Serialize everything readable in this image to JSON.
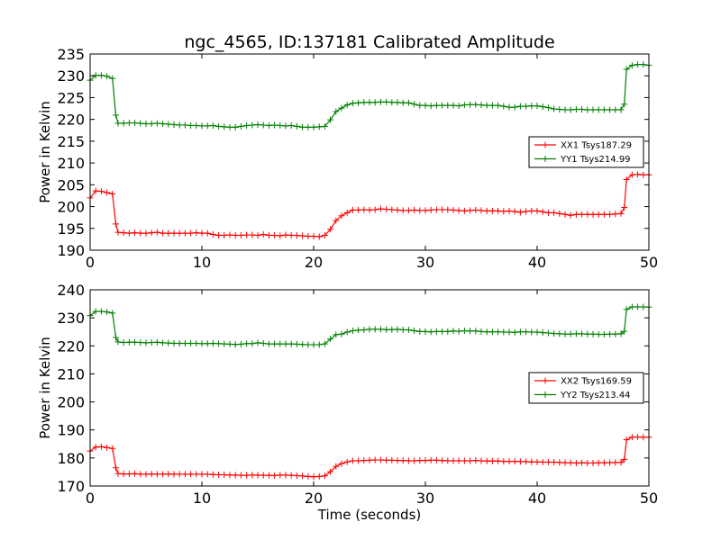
{
  "figure": {
    "title": "ngc_4565, ID:137181 Calibrated Amplitude"
  },
  "chart_data": [
    {
      "type": "line",
      "title": "ngc_4565, ID:137181 Calibrated Amplitude",
      "xlabel": "",
      "ylabel": "Power in Kelvin",
      "xlim": [
        0,
        50
      ],
      "ylim": [
        190,
        235
      ],
      "xticks": [
        "0",
        "10",
        "20",
        "30",
        "40",
        "50"
      ],
      "yticks": [
        "190",
        "195",
        "200",
        "205",
        "210",
        "215",
        "220",
        "225",
        "230",
        "235"
      ],
      "grid": false,
      "legend": "center-right",
      "x": [
        0.0,
        0.5,
        1.0,
        1.5,
        2.0,
        2.3,
        2.5,
        3.0,
        3.5,
        4.0,
        4.5,
        5.0,
        5.5,
        6.0,
        6.5,
        7.0,
        7.5,
        8.0,
        8.5,
        9.0,
        9.5,
        10.0,
        10.5,
        11.0,
        11.5,
        12.0,
        12.5,
        13.0,
        13.5,
        14.0,
        14.5,
        15.0,
        15.5,
        16.0,
        16.5,
        17.0,
        17.5,
        18.0,
        18.5,
        19.0,
        19.5,
        20.0,
        20.5,
        21.0,
        21.5,
        22.0,
        22.5,
        23.0,
        23.5,
        24.0,
        24.5,
        25.0,
        25.5,
        26.0,
        26.5,
        27.0,
        27.5,
        28.0,
        28.5,
        29.0,
        29.5,
        30.0,
        30.5,
        31.0,
        31.5,
        32.0,
        32.5,
        33.0,
        33.5,
        34.0,
        34.5,
        35.0,
        35.5,
        36.0,
        36.5,
        37.0,
        37.5,
        38.0,
        38.5,
        39.0,
        39.5,
        40.0,
        40.5,
        41.0,
        41.5,
        42.0,
        42.5,
        43.0,
        43.5,
        44.0,
        44.5,
        45.0,
        45.5,
        46.0,
        46.5,
        47.0,
        47.5,
        47.8,
        48.0,
        48.5,
        49.0,
        49.5,
        50.0
      ],
      "series": [
        {
          "name": "XX1 Tsys187.29",
          "color": "#ff0000",
          "values": [
            202.0,
            203.6,
            203.5,
            203.2,
            202.9,
            196.0,
            194.1,
            194.0,
            193.9,
            194.0,
            193.9,
            193.9,
            194.0,
            194.1,
            193.9,
            193.9,
            193.9,
            193.9,
            193.9,
            193.9,
            194.0,
            193.9,
            193.9,
            193.6,
            193.4,
            193.4,
            193.5,
            193.4,
            193.4,
            193.5,
            193.5,
            193.4,
            193.6,
            193.4,
            193.4,
            193.3,
            193.5,
            193.4,
            193.4,
            193.3,
            193.2,
            193.2,
            193.1,
            193.4,
            194.8,
            196.8,
            197.9,
            198.6,
            199.2,
            199.2,
            199.3,
            199.2,
            199.3,
            199.5,
            199.4,
            199.3,
            199.2,
            199.1,
            199.1,
            199.2,
            199.1,
            199.1,
            199.2,
            199.3,
            199.3,
            199.3,
            199.2,
            199.1,
            199.0,
            199.1,
            199.2,
            199.1,
            199.0,
            199.0,
            199.0,
            198.9,
            199.0,
            198.9,
            198.7,
            198.9,
            199.0,
            199.0,
            198.8,
            198.6,
            198.6,
            198.4,
            198.2,
            198.0,
            198.2,
            198.2,
            198.2,
            198.2,
            198.2,
            198.2,
            198.2,
            198.3,
            198.4,
            199.8,
            206.2,
            207.3,
            207.4,
            207.3,
            207.3
          ]
        },
        {
          "name": "YY1 Tsys214.99",
          "color": "#008000",
          "values": [
            229.0,
            230.1,
            230.1,
            229.9,
            229.4,
            221.0,
            219.1,
            219.1,
            219.2,
            219.2,
            219.1,
            219.0,
            219.0,
            219.1,
            219.0,
            218.9,
            218.8,
            218.7,
            218.7,
            218.6,
            218.6,
            218.5,
            218.5,
            218.6,
            218.4,
            218.3,
            218.2,
            218.2,
            218.4,
            218.6,
            218.7,
            218.8,
            218.7,
            218.6,
            218.7,
            218.6,
            218.5,
            218.6,
            218.4,
            218.2,
            218.2,
            218.2,
            218.3,
            218.4,
            219.9,
            221.8,
            222.6,
            223.3,
            223.7,
            223.8,
            223.9,
            223.9,
            223.9,
            224.0,
            224.0,
            223.9,
            223.9,
            223.8,
            223.8,
            223.5,
            223.2,
            223.2,
            223.1,
            223.2,
            223.2,
            223.2,
            223.2,
            223.1,
            223.3,
            223.4,
            223.4,
            223.3,
            223.2,
            223.2,
            223.2,
            223.0,
            222.8,
            222.8,
            223.0,
            223.0,
            223.1,
            223.1,
            222.9,
            222.7,
            222.4,
            222.3,
            222.2,
            222.2,
            222.3,
            222.3,
            222.2,
            222.2,
            222.2,
            222.2,
            222.2,
            222.2,
            222.2,
            223.5,
            231.5,
            232.4,
            232.6,
            232.6,
            232.4
          ]
        }
      ]
    },
    {
      "type": "line",
      "title": "",
      "xlabel": "Time (seconds)",
      "ylabel": "Power in Kelvin",
      "xlim": [
        0,
        50
      ],
      "ylim": [
        170,
        240
      ],
      "xticks": [
        "0",
        "10",
        "20",
        "30",
        "40",
        "50"
      ],
      "yticks": [
        "170",
        "180",
        "190",
        "200",
        "210",
        "220",
        "230",
        "240"
      ],
      "grid": false,
      "legend": "center-right",
      "x": [
        0.0,
        0.5,
        1.0,
        1.5,
        2.0,
        2.3,
        2.5,
        3.0,
        3.5,
        4.0,
        4.5,
        5.0,
        5.5,
        6.0,
        6.5,
        7.0,
        7.5,
        8.0,
        8.5,
        9.0,
        9.5,
        10.0,
        10.5,
        11.0,
        11.5,
        12.0,
        12.5,
        13.0,
        13.5,
        14.0,
        14.5,
        15.0,
        15.5,
        16.0,
        16.5,
        17.0,
        17.5,
        18.0,
        18.5,
        19.0,
        19.5,
        20.0,
        20.5,
        21.0,
        21.5,
        22.0,
        22.5,
        23.0,
        23.5,
        24.0,
        24.5,
        25.0,
        25.5,
        26.0,
        26.5,
        27.0,
        27.5,
        28.0,
        28.5,
        29.0,
        29.5,
        30.0,
        30.5,
        31.0,
        31.5,
        32.0,
        32.5,
        33.0,
        33.5,
        34.0,
        34.5,
        35.0,
        35.5,
        36.0,
        36.5,
        37.0,
        37.5,
        38.0,
        38.5,
        39.0,
        39.5,
        40.0,
        40.5,
        41.0,
        41.5,
        42.0,
        42.5,
        43.0,
        43.5,
        44.0,
        44.5,
        45.0,
        45.5,
        46.0,
        46.5,
        47.0,
        47.5,
        47.8,
        48.0,
        48.5,
        49.0,
        49.5,
        50.0
      ],
      "series": [
        {
          "name": "XX2 Tsys169.59",
          "color": "#ff0000",
          "values": [
            182.5,
            183.9,
            184.0,
            183.7,
            183.4,
            176.5,
            174.4,
            174.3,
            174.3,
            174.4,
            174.2,
            174.2,
            174.3,
            174.2,
            174.2,
            174.3,
            174.2,
            174.2,
            174.2,
            174.2,
            174.2,
            174.2,
            174.2,
            174.1,
            174.0,
            174.0,
            173.9,
            173.9,
            173.8,
            173.8,
            173.9,
            173.9,
            173.8,
            173.8,
            173.7,
            173.9,
            173.9,
            173.8,
            173.7,
            173.6,
            173.4,
            173.3,
            173.4,
            173.6,
            175.1,
            177.0,
            178.0,
            178.6,
            179.0,
            179.0,
            179.1,
            179.2,
            179.3,
            179.3,
            179.2,
            179.2,
            179.1,
            179.1,
            179.0,
            179.0,
            179.1,
            179.1,
            179.2,
            179.2,
            179.1,
            179.0,
            179.0,
            179.0,
            179.0,
            179.0,
            179.1,
            179.0,
            178.9,
            178.9,
            178.9,
            178.8,
            178.8,
            178.8,
            178.7,
            178.7,
            178.6,
            178.6,
            178.5,
            178.5,
            178.5,
            178.4,
            178.3,
            178.3,
            178.2,
            178.3,
            178.2,
            178.2,
            178.3,
            178.3,
            178.3,
            178.4,
            178.4,
            179.5,
            186.5,
            187.4,
            187.5,
            187.4,
            187.4
          ]
        },
        {
          "name": "YY2 Tsys213.44",
          "color": "#008000",
          "values": [
            230.8,
            232.3,
            232.3,
            232.1,
            231.7,
            223.0,
            221.4,
            221.2,
            221.3,
            221.3,
            221.2,
            221.1,
            221.2,
            221.3,
            221.1,
            221.0,
            220.9,
            220.9,
            220.9,
            220.9,
            220.9,
            220.8,
            220.8,
            220.9,
            220.8,
            220.7,
            220.6,
            220.5,
            220.6,
            220.8,
            220.8,
            221.1,
            220.9,
            220.7,
            220.7,
            220.7,
            220.7,
            220.7,
            220.6,
            220.5,
            220.4,
            220.4,
            220.4,
            220.7,
            222.4,
            224.0,
            224.2,
            224.9,
            225.4,
            225.6,
            225.7,
            225.9,
            225.9,
            225.9,
            225.8,
            225.8,
            225.9,
            225.7,
            225.7,
            225.4,
            225.1,
            225.1,
            225.0,
            225.1,
            225.1,
            225.1,
            225.3,
            225.2,
            225.4,
            225.3,
            225.3,
            225.1,
            225.0,
            225.0,
            225.0,
            224.9,
            224.9,
            224.8,
            225.0,
            225.0,
            224.9,
            224.9,
            224.7,
            224.6,
            224.4,
            224.3,
            224.2,
            224.2,
            224.3,
            224.3,
            224.2,
            224.2,
            224.1,
            224.1,
            224.2,
            224.2,
            224.3,
            225.2,
            233.0,
            233.9,
            233.9,
            233.9,
            233.8
          ]
        }
      ]
    }
  ]
}
